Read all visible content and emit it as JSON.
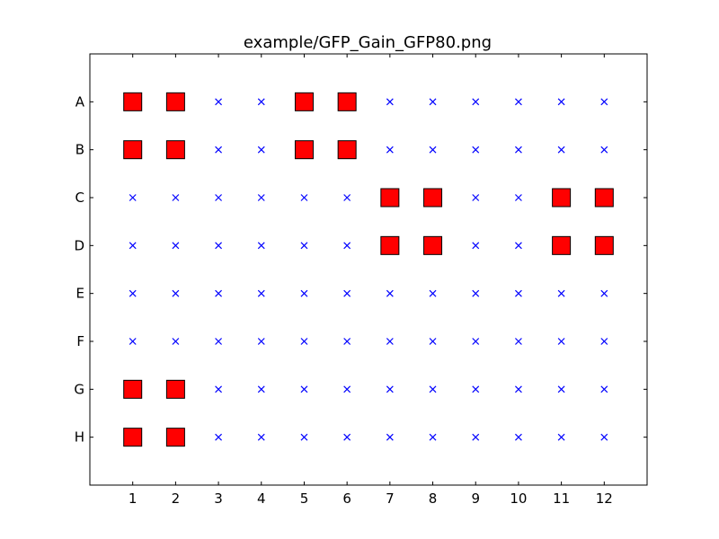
{
  "chart_data": {
    "type": "scatter",
    "title": "example/GFP_Gain_GFP80.png",
    "xlabel": "",
    "ylabel": "",
    "x_ticks": [
      "1",
      "2",
      "3",
      "4",
      "5",
      "6",
      "7",
      "8",
      "9",
      "10",
      "11",
      "12"
    ],
    "y_ticks": [
      "A",
      "B",
      "C",
      "D",
      "E",
      "F",
      "G",
      "H"
    ],
    "xlim": [
      0,
      13
    ],
    "ylim_rows": [
      "top-pad",
      "A",
      "B",
      "C",
      "D",
      "E",
      "F",
      "G",
      "H",
      "bottom-pad"
    ],
    "grid": false,
    "legend": null,
    "colors": {
      "hit_fill": "#ff0000",
      "hit_edge": "#000000",
      "miss": "#0000ff",
      "axes": "#000000",
      "background": "#ffffff"
    },
    "series": [
      {
        "marker": "square",
        "points": [
          [
            "A",
            1
          ],
          [
            "A",
            2
          ],
          [
            "A",
            5
          ],
          [
            "A",
            6
          ],
          [
            "B",
            1
          ],
          [
            "B",
            2
          ],
          [
            "B",
            5
          ],
          [
            "B",
            6
          ],
          [
            "C",
            7
          ],
          [
            "C",
            8
          ],
          [
            "C",
            11
          ],
          [
            "C",
            12
          ],
          [
            "D",
            7
          ],
          [
            "D",
            8
          ],
          [
            "D",
            11
          ],
          [
            "D",
            12
          ],
          [
            "G",
            1
          ],
          [
            "G",
            2
          ],
          [
            "H",
            1
          ],
          [
            "H",
            2
          ]
        ]
      },
      {
        "marker": "x",
        "points_rule": "all other wells of the 8x12 grid"
      }
    ]
  }
}
